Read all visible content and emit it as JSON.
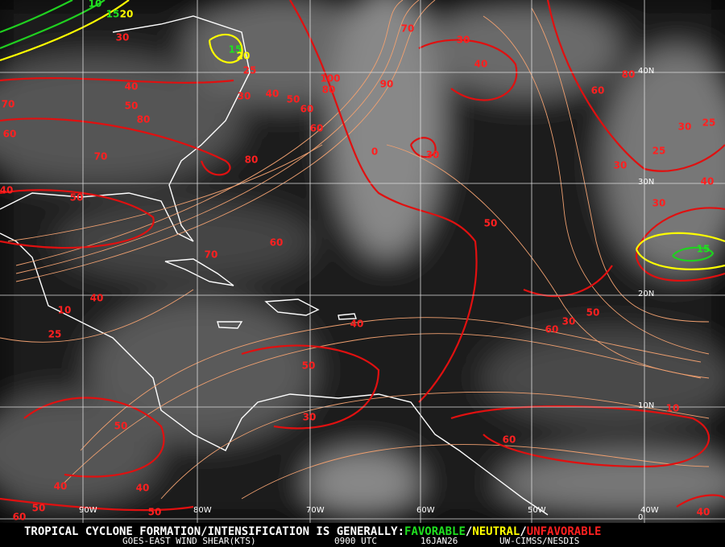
{
  "map": {
    "lon_labels": [
      "90W",
      "80W",
      "70W",
      "60W",
      "50W",
      "40W"
    ],
    "lat_labels": [
      "40N",
      "30N",
      "20N",
      "10N",
      "0"
    ],
    "contour_labels": [
      "10",
      "15",
      "20",
      "30",
      "15",
      "20",
      "70",
      "30",
      "40",
      "40",
      "50",
      "70",
      "80",
      "60",
      "25",
      "30",
      "40",
      "50",
      "60",
      "80",
      "100",
      "90",
      "60",
      "80",
      "70",
      "40",
      "50",
      "0",
      "30",
      "60",
      "80",
      "30",
      "25",
      "25",
      "30",
      "40",
      "30",
      "15",
      "50",
      "60",
      "70",
      "40",
      "10",
      "25",
      "40",
      "50",
      "30",
      "60",
      "50",
      "30",
      "10",
      "50",
      "60",
      "40",
      "40",
      "50",
      "50",
      "60",
      "40"
    ]
  },
  "footer": {
    "message": {
      "lead": "TROPICAL CYCLONE FORMATION/INTENSIFICATION IS GENERALLY:",
      "favorable": "FAVORABLE",
      "sep1": "/",
      "neutral": "NEUTRAL",
      "sep2": "/",
      "unfavorable": "UNFAVORABLE"
    },
    "credit": {
      "product": "GOES-EAST WIND SHEAR(KTS)",
      "time": "0900 UTC",
      "date": "16JAN26",
      "source": "UW-CIMSS/NESDIS"
    }
  }
}
